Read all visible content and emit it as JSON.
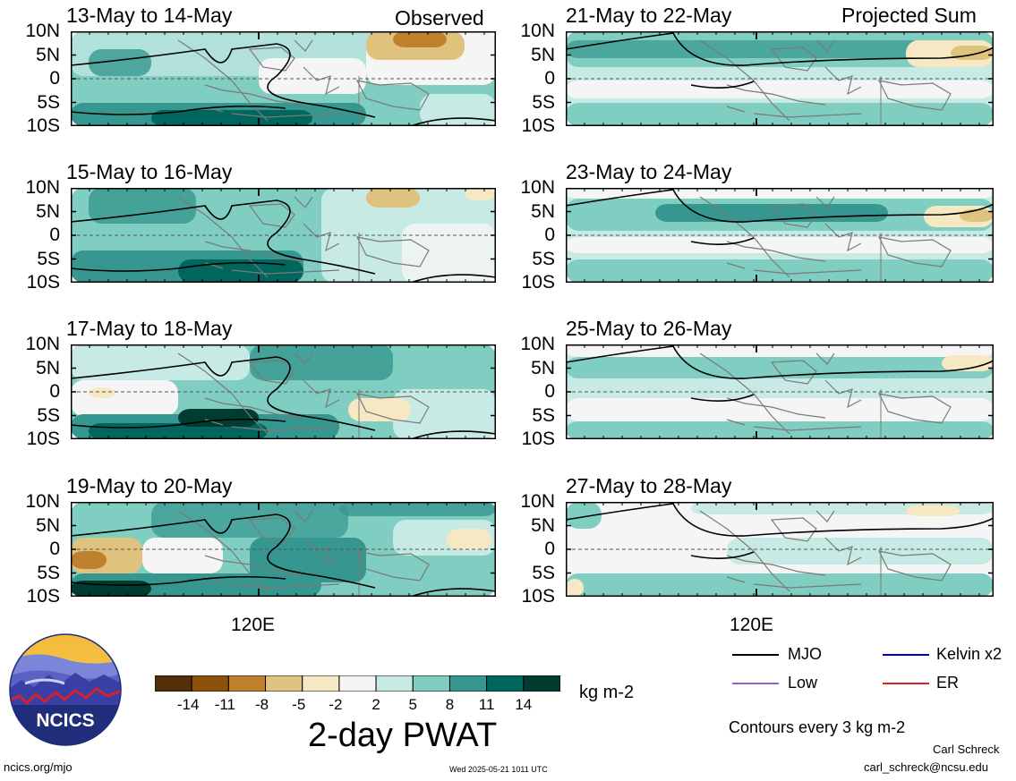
{
  "headers": {
    "left": "Observed",
    "right": "Projected Sum"
  },
  "lat_ticks": [
    "10N",
    "5N",
    "0",
    "5S",
    "10S"
  ],
  "lon_label": "120E",
  "panels_left": [
    {
      "date": "13-May to 14-May"
    },
    {
      "date": "15-May to 16-May"
    },
    {
      "date": "17-May to 18-May"
    },
    {
      "date": "19-May to 20-May"
    }
  ],
  "panels_right": [
    {
      "date": "21-May to 22-May"
    },
    {
      "date": "23-May to 24-May"
    },
    {
      "date": "25-May to 26-May"
    },
    {
      "date": "27-May to 28-May"
    }
  ],
  "colorbar": {
    "ticks": [
      "-14",
      "-11",
      "-8",
      "-5",
      "-2",
      "2",
      "5",
      "8",
      "11",
      "14"
    ],
    "colors": [
      "#54300a",
      "#8c510a",
      "#bf812d",
      "#dfc27d",
      "#f6e8c3",
      "#f5f5f5",
      "#c7eae5",
      "#80cdc1",
      "#35978f",
      "#01665e",
      "#003c30"
    ],
    "units": "kg m-2",
    "title": "2-day PWAT"
  },
  "legend": {
    "items": [
      {
        "label": "MJO",
        "color": "#000000"
      },
      {
        "label": "Kelvin x2",
        "color": "#0000cc"
      },
      {
        "label": "Low",
        "color": "#9b59d0"
      },
      {
        "label": "ER",
        "color": "#e02020"
      }
    ],
    "contour_note": "Contours every 3 kg m-2"
  },
  "logo": {
    "text": "NCICS"
  },
  "footer": {
    "url": "ncics.org/mjo",
    "timestamp": "Wed 2025-05-21 1011 UTC",
    "author": "Carl Schreck",
    "email": "carl_schreck@ncsu.edu"
  }
}
